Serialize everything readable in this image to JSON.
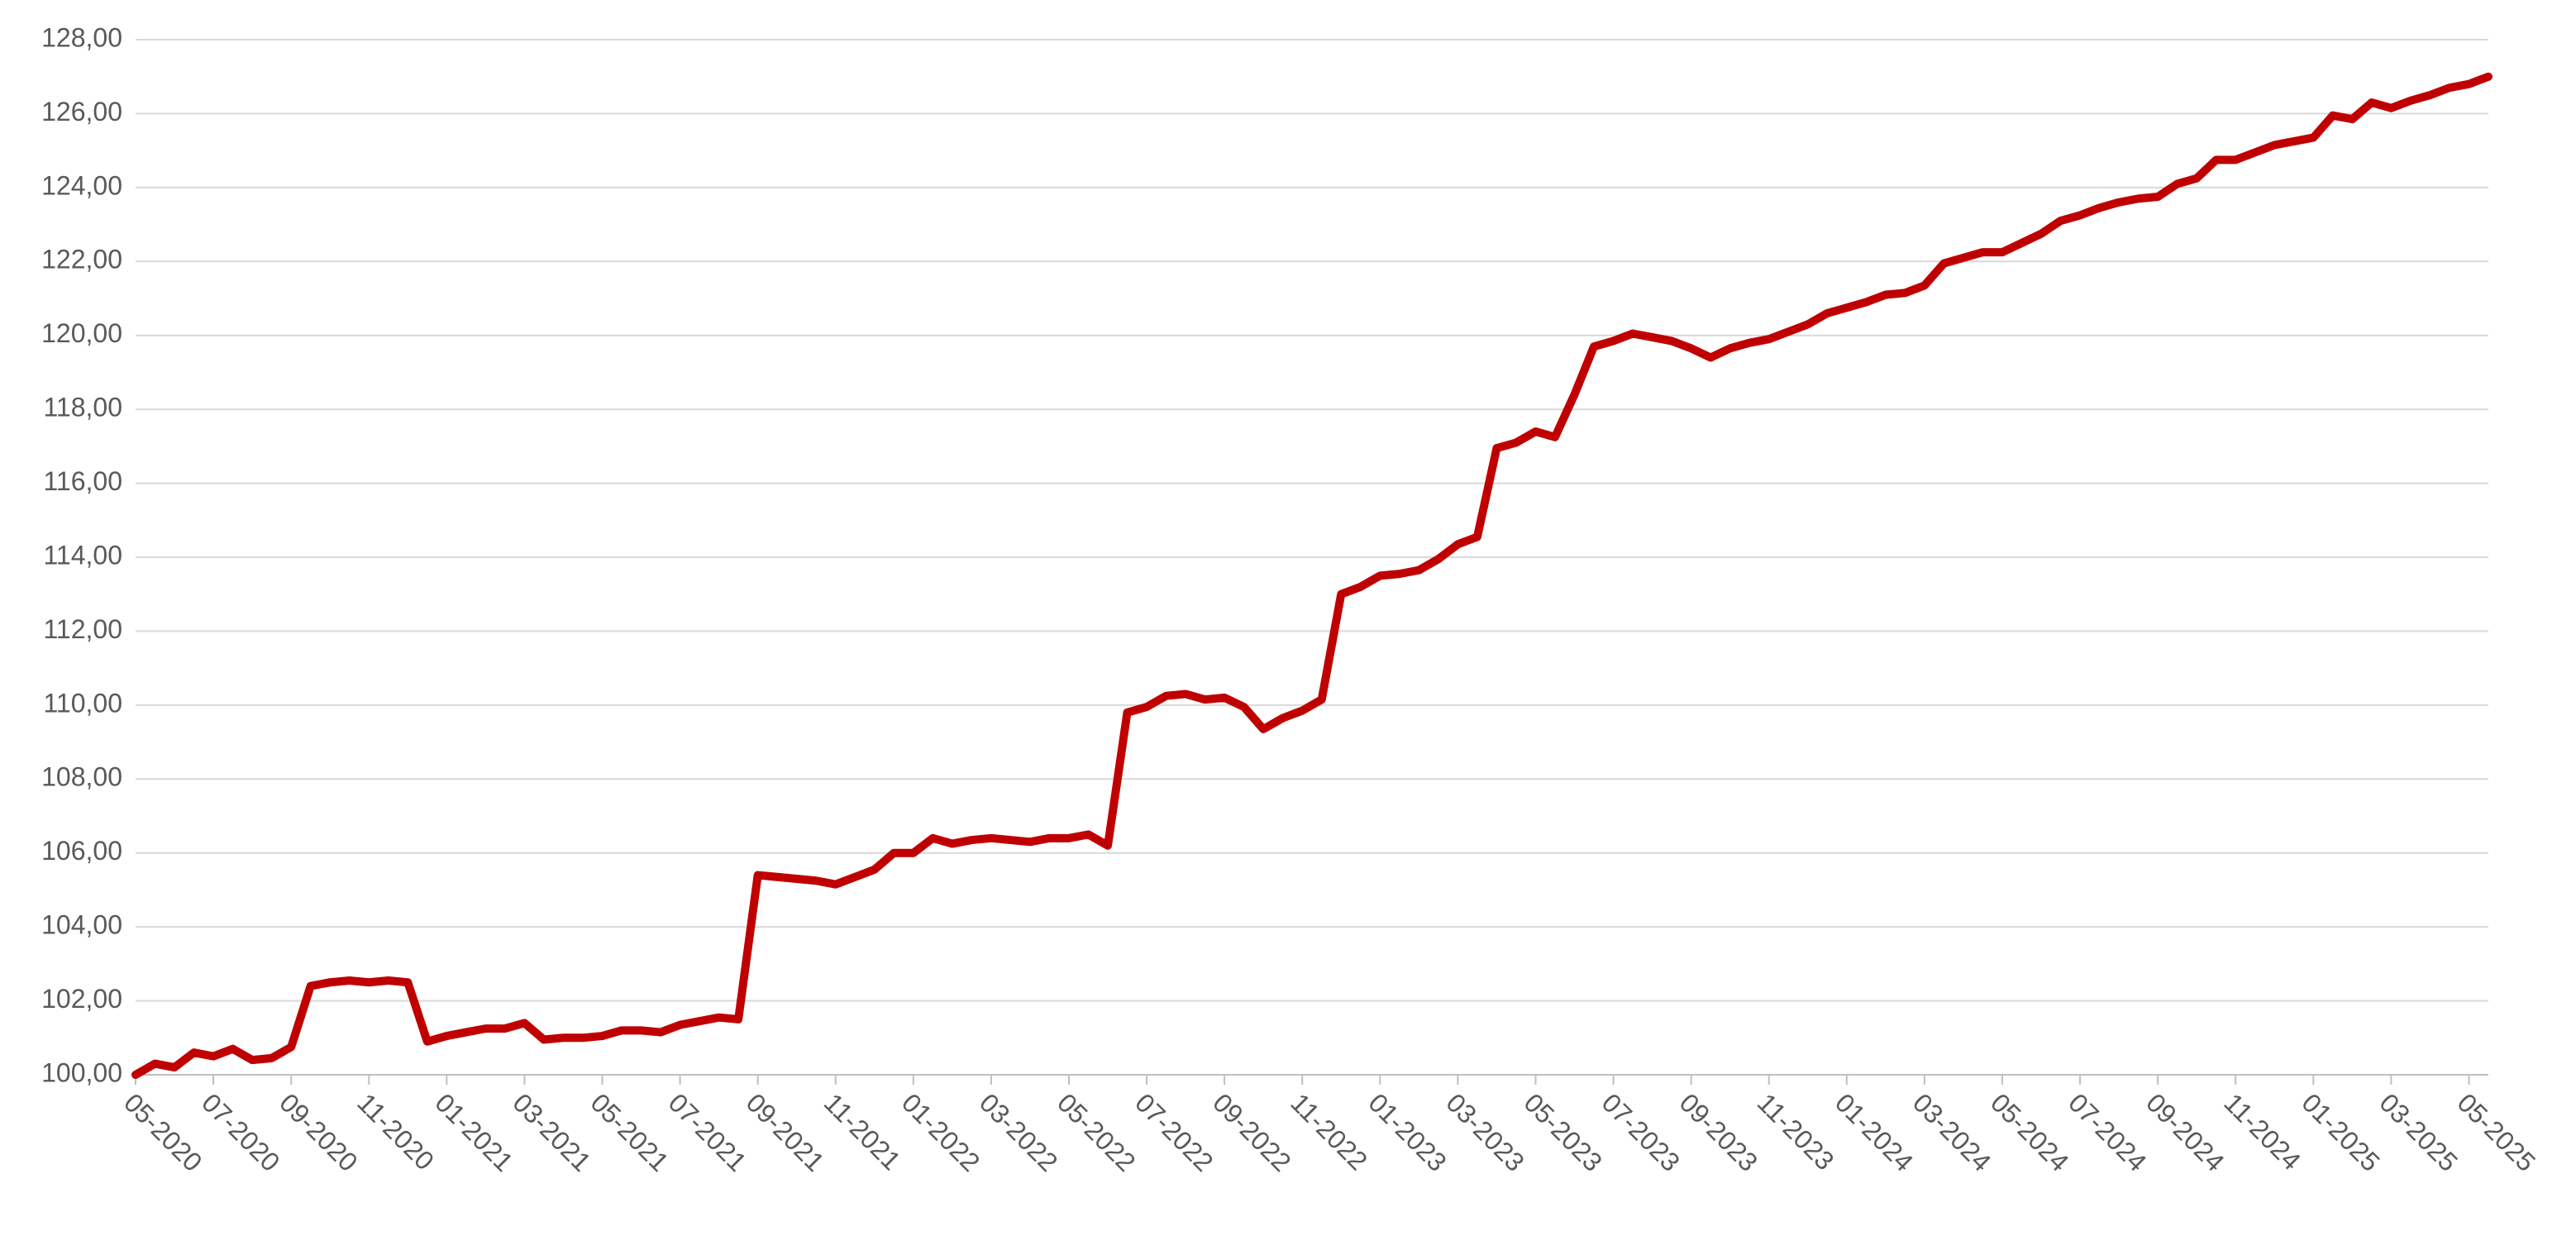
{
  "chart_data": {
    "type": "line",
    "categories": [
      "05-2020",
      null,
      null,
      null,
      "07-2020",
      null,
      null,
      null,
      "09-2020",
      null,
      null,
      null,
      "11-2020",
      null,
      null,
      null,
      "01-2021",
      null,
      null,
      null,
      "03-2021",
      null,
      null,
      null,
      "05-2021",
      null,
      null,
      null,
      "07-2021",
      null,
      null,
      null,
      "09-2021",
      null,
      null,
      null,
      "11-2021",
      null,
      null,
      null,
      "01-2022",
      null,
      null,
      null,
      "03-2022",
      null,
      null,
      null,
      "05-2022",
      null,
      null,
      null,
      "07-2022",
      null,
      null,
      null,
      "09-2022",
      null,
      null,
      null,
      "11-2022",
      null,
      null,
      null,
      "01-2023",
      null,
      null,
      null,
      "03-2023",
      null,
      null,
      null,
      "05-2023",
      null,
      null,
      null,
      "07-2023",
      null,
      null,
      null,
      "09-2023",
      null,
      null,
      null,
      "11-2023",
      null,
      null,
      null,
      "01-2024",
      null,
      null,
      null,
      "03-2024",
      null,
      null,
      null,
      "05-2024",
      null,
      null,
      null,
      "07-2024",
      null,
      null,
      null,
      "09-2024",
      null,
      null,
      null,
      "11-2024",
      null,
      null,
      null,
      "01-2025",
      null,
      null,
      null,
      "03-2025",
      null,
      null,
      null,
      "05-2025",
      null
    ],
    "values": [
      100.0,
      100.3,
      100.2,
      100.6,
      100.5,
      100.7,
      100.4,
      100.45,
      100.75,
      102.4,
      102.5,
      102.55,
      102.5,
      102.55,
      102.5,
      100.9,
      101.05,
      101.15,
      101.25,
      101.25,
      101.4,
      100.95,
      101.0,
      101.0,
      101.05,
      101.2,
      101.2,
      101.15,
      101.35,
      101.45,
      101.55,
      101.5,
      105.4,
      105.35,
      105.3,
      105.25,
      105.15,
      105.35,
      105.55,
      106.0,
      106.0,
      106.4,
      106.25,
      106.35,
      106.4,
      106.35,
      106.3,
      106.4,
      106.4,
      106.5,
      106.2,
      109.8,
      109.95,
      110.25,
      110.3,
      110.15,
      110.2,
      109.95,
      109.35,
      109.65,
      109.85,
      110.15,
      113.0,
      113.2,
      113.5,
      113.55,
      113.65,
      113.95,
      114.35,
      114.55,
      116.95,
      117.1,
      117.4,
      117.25,
      118.4,
      119.7,
      119.85,
      120.05,
      119.95,
      119.85,
      119.65,
      119.4,
      119.65,
      119.8,
      119.9,
      120.1,
      120.3,
      120.6,
      120.75,
      120.9,
      121.1,
      121.15,
      121.35,
      121.95,
      122.1,
      122.25,
      122.25,
      122.5,
      122.75,
      123.1,
      123.25,
      123.45,
      123.6,
      123.7,
      123.75,
      124.1,
      124.25,
      124.75,
      124.75,
      124.95,
      125.15,
      125.25,
      125.35,
      125.95,
      125.85,
      126.3,
      126.15,
      126.35,
      126.5,
      126.7,
      126.8,
      127.0
    ],
    "color": "#c00000",
    "ylim": [
      100,
      128
    ],
    "yticks": [
      {
        "value": 100,
        "label": "100,00"
      },
      {
        "value": 102,
        "label": "102,00"
      },
      {
        "value": 104,
        "label": "104,00"
      },
      {
        "value": 106,
        "label": "106,00"
      },
      {
        "value": 108,
        "label": "108,00"
      },
      {
        "value": 110,
        "label": "110,00"
      },
      {
        "value": 112,
        "label": "112,00"
      },
      {
        "value": 114,
        "label": "114,00"
      },
      {
        "value": 116,
        "label": "116,00"
      },
      {
        "value": 118,
        "label": "118,00"
      },
      {
        "value": 120,
        "label": "120,00"
      },
      {
        "value": 122,
        "label": "122,00"
      },
      {
        "value": 124,
        "label": "124,00"
      },
      {
        "value": 126,
        "label": "126,00"
      },
      {
        "value": 128,
        "label": "128,00"
      }
    ],
    "grid": true
  }
}
